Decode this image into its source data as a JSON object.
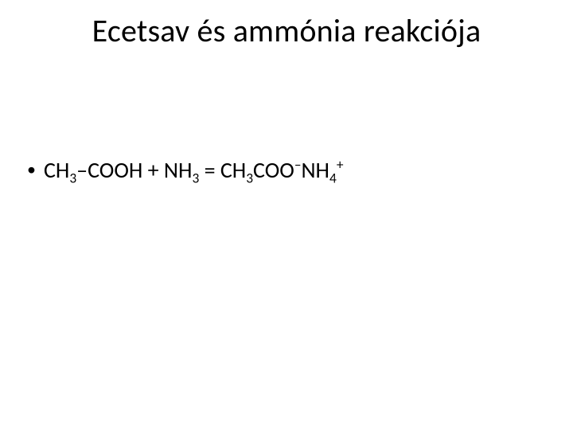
{
  "slide": {
    "title": "Ecetsav és ammónia reakciója",
    "bullet_marker": "•",
    "equation": {
      "ch3a": "CH",
      "sub3a": "3",
      "dash_cooh": "–COOH + NH",
      "sub3b": "3",
      "eq_ch3": " = CH",
      "sub3c": "3",
      "coo": "COO",
      "sup_minus": "–",
      "nh": "NH",
      "sub4": "4",
      "sup_plus": "+"
    }
  },
  "style": {
    "background_color": "#ffffff",
    "text_color": "#000000",
    "title_fontsize": 40,
    "body_fontsize": 28,
    "font_family": "Calibri"
  }
}
